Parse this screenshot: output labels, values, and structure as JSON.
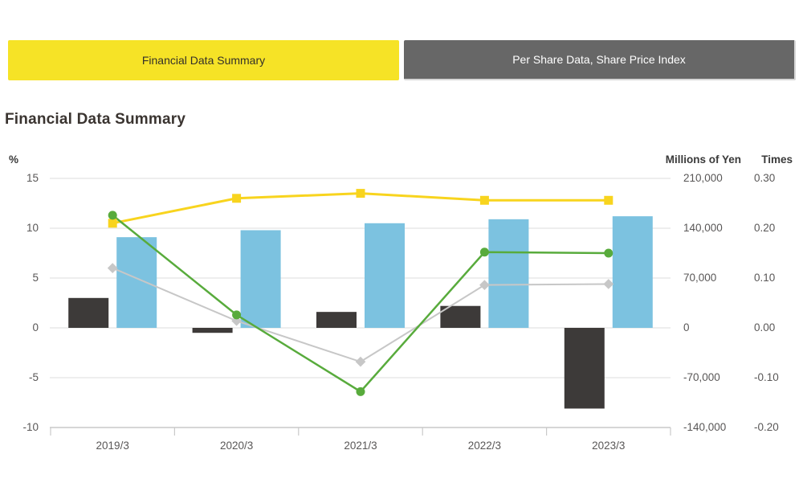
{
  "tabs": [
    {
      "label": "Financial Data Summary",
      "active": true
    },
    {
      "label": "Per Share Data, Share Price Index",
      "active": false
    }
  ],
  "title": "Financial Data Summary",
  "colors": {
    "active_tab_yellow": "#f6e326",
    "inactive_tab_gray": "#676767",
    "gridline": "#e3e3e3",
    "axis_line": "#c9c9c9",
    "tick_text": "#595757"
  },
  "chart_data": {
    "type": "combo-bar-line",
    "title": "Financial Data Summary",
    "categories": [
      "2019/3",
      "2020/3",
      "2021/3",
      "2022/3",
      "2023/3"
    ],
    "series": [
      {
        "name": "dark-bar",
        "type": "bar",
        "color": "#3d3a39",
        "values_pct_axis": [
          3.0,
          -0.5,
          1.6,
          2.2,
          -8.1
        ]
      },
      {
        "name": "blue-bar",
        "type": "bar",
        "color": "#7cc2e0",
        "values_pct_axis": [
          9.1,
          9.8,
          10.5,
          10.9,
          11.2
        ]
      },
      {
        "name": "gray-line",
        "type": "line",
        "marker": "diamond",
        "color": "#c7c7c7",
        "values_pct_axis": [
          6.0,
          0.7,
          -3.4,
          4.3,
          4.4
        ]
      },
      {
        "name": "yellow-line",
        "type": "line",
        "marker": "square",
        "color": "#f8d41e",
        "values_pct_axis": [
          10.5,
          13.0,
          13.5,
          12.8,
          12.8
        ]
      },
      {
        "name": "green-line",
        "type": "line",
        "marker": "circle",
        "color": "#58ab3c",
        "values_pct_axis": [
          11.3,
          1.3,
          -6.4,
          7.6,
          7.5
        ]
      }
    ],
    "left_axis": {
      "unit": "%",
      "ticks": [
        15,
        10,
        5,
        0,
        -5,
        -10
      ],
      "max": 15,
      "min": -10
    },
    "right_axis_yen": {
      "unit": "Millions of Yen",
      "ticks": [
        "210,000",
        "140,000",
        "70,000",
        "0",
        "-70,000",
        "-140,000"
      ]
    },
    "right_axis_times": {
      "unit": "Times",
      "ticks": [
        "0.30",
        "0.20",
        "0.10",
        "0.00",
        "-0.10",
        "-0.20"
      ]
    },
    "axis_equivalence": "5 % = 70,000 Millions of Yen = 0.10 Times per gridline step",
    "grid": true,
    "legend": "none"
  }
}
